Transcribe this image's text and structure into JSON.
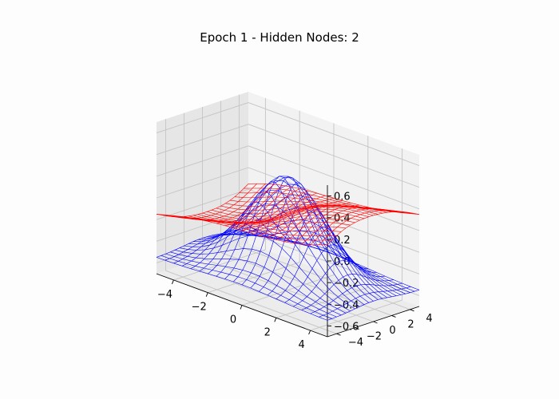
{
  "chart_data": {
    "type": "wireframe-3d",
    "title": "Epoch 1 - Hidden Nodes: 2",
    "xlabel": "",
    "ylabel": "",
    "zlabel": "",
    "xlim": [
      -5,
      5
    ],
    "ylim": [
      -5,
      5
    ],
    "zlim": [
      -0.7,
      0.7
    ],
    "x_ticks": [
      -4,
      -2,
      0,
      2,
      4
    ],
    "y_ticks": [
      -4,
      -2,
      0,
      2,
      4
    ],
    "z_ticks": [
      -0.6,
      -0.4,
      -0.2,
      0.0,
      0.2,
      0.4,
      0.6
    ],
    "x_tick_labels": [
      "−4",
      "−2",
      "0",
      "2",
      "4"
    ],
    "y_tick_labels": [
      "−4",
      "−2",
      "0",
      "2",
      "4"
    ],
    "z_tick_labels": [
      "−0.6",
      "−0.4",
      "−0.2",
      "0.0",
      "0.2",
      "0.4",
      "0.6"
    ],
    "grid": true,
    "legend": "none",
    "series": [
      {
        "color": "#0000ff",
        "function": "0.9*exp(-(x^2+y^2)/8) - 0.55",
        "grid_points": 21,
        "domain": [
          -5,
          5
        ]
      },
      {
        "color": "#ff0000",
        "function": "0.15*tanh(0.4*(x+y)) - 0.15*tanh(0.3*(y - x))",
        "grid_points": 21,
        "domain": [
          -5,
          5
        ]
      }
    ]
  }
}
